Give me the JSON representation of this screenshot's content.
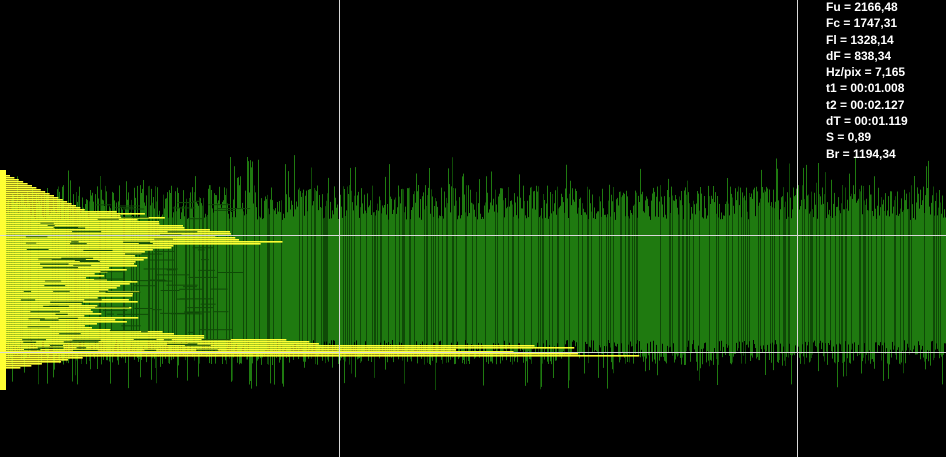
{
  "colors": {
    "background": "#000000",
    "signal": "#1f7a10",
    "signal_dark": "#0f4a07",
    "highlight": "#ffff33",
    "cursor_line": "#d8d8d8",
    "readout_text": "#ffffff"
  },
  "readout": [
    {
      "name": "Fu",
      "text": "Fu = 2166,48"
    },
    {
      "name": "Fc",
      "text": "Fc = 1747,31"
    },
    {
      "name": "Fl",
      "text": "Fl = 1328,14"
    },
    {
      "name": "dF",
      "text": "dF = 838,34"
    },
    {
      "name": "hz-per-pix",
      "text": "Hz/pix = 7,165"
    },
    {
      "name": "t1",
      "text": "t1 = 00:01.008"
    },
    {
      "name": "t2",
      "text": "t2 = 00:02.127"
    },
    {
      "name": "dT",
      "text": "dT = 00:01.119"
    },
    {
      "name": "S",
      "text": "S = 0,89"
    },
    {
      "name": "Br",
      "text": "Br = 1194,34"
    }
  ]
}
